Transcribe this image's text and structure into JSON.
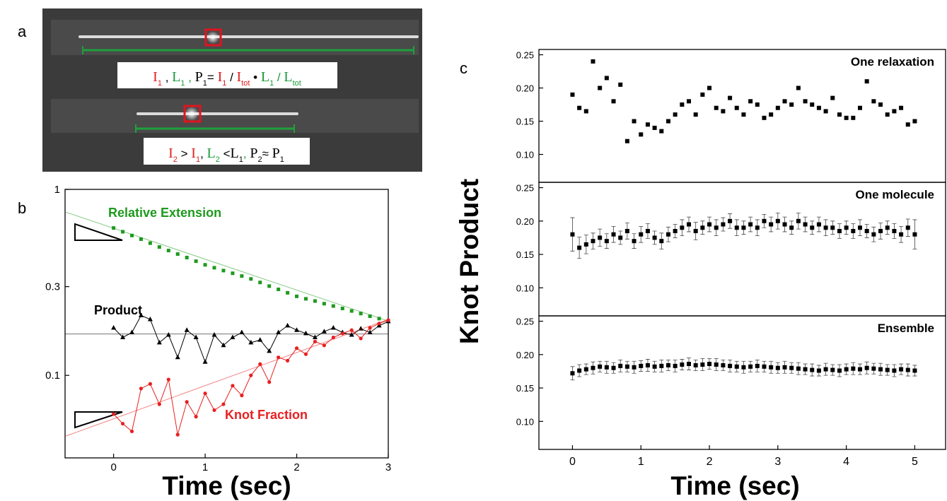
{
  "panel_labels": [
    "a",
    "b",
    "c"
  ],
  "panel_a": {
    "formulas": [
      [
        {
          "text": "I",
          "sub": "1",
          "color": "#e02020"
        },
        {
          "text": " , "
        },
        {
          "text": "L",
          "sub": "1",
          "color": "#1e9a3c"
        },
        {
          "text": " , ",
          "color": "#1e9a3c"
        },
        {
          "text": "P",
          "sub": "1"
        },
        {
          "text": "= "
        },
        {
          "text": "I",
          "sub": "1",
          "color": "#e02020"
        },
        {
          "text": " / "
        },
        {
          "text": "I",
          "sub": "tot",
          "color": "#e02020"
        },
        {
          "text": " • "
        },
        {
          "text": "L",
          "sub": "1",
          "color": "#1e9a3c"
        },
        {
          "text": " / ",
          "color": "#1e9a3c"
        },
        {
          "text": "L",
          "sub": "tot",
          "color": "#1e9a3c"
        }
      ],
      [
        {
          "text": "I",
          "sub": "2",
          "color": "#e02020"
        },
        {
          "text": " > "
        },
        {
          "text": "I",
          "sub": "1",
          "color": "#e02020"
        },
        {
          "text": ", "
        },
        {
          "text": "L",
          "sub": "2",
          "color": "#1e9a3c"
        },
        {
          "text": " <"
        },
        {
          "text": "L",
          "sub": "1"
        },
        {
          "text": ", ",
          "color": "#1e9a3c"
        },
        {
          "text": "P",
          "sub": "2"
        },
        {
          "text": "≈ "
        },
        {
          "text": "P",
          "sub": "1"
        }
      ]
    ]
  },
  "chart_data": [
    {
      "type": "line",
      "xlabel": "Time (sec)",
      "yscale": "log",
      "xlim": [
        -0.53,
        3
      ],
      "ylim": [
        0.036,
        1
      ],
      "xticks": [
        0,
        1,
        2,
        3
      ],
      "yticks": [
        0.1,
        0.3,
        1
      ],
      "x": [
        0,
        0.1,
        0.2,
        0.3,
        0.4,
        0.5,
        0.6,
        0.7,
        0.8,
        0.9,
        1.0,
        1.1,
        1.2,
        1.3,
        1.4,
        1.5,
        1.6,
        1.7,
        1.8,
        1.9,
        2.0,
        2.1,
        2.2,
        2.3,
        2.4,
        2.5,
        2.6,
        2.7,
        2.8,
        2.9,
        3.0
      ],
      "series": [
        {
          "name": "Relative Extension",
          "color": "#1e9a1e",
          "marker": "square",
          "fit": [
            0.757,
            0.196
          ],
          "values": [
            0.62,
            0.592,
            0.565,
            0.54,
            0.514,
            0.49,
            0.469,
            0.449,
            0.43,
            0.411,
            0.393,
            0.379,
            0.366,
            0.354,
            0.342,
            0.33,
            0.316,
            0.302,
            0.29,
            0.278,
            0.266,
            0.258,
            0.251,
            0.243,
            0.236,
            0.229,
            0.222,
            0.215,
            0.208,
            0.202,
            0.196
          ]
        },
        {
          "name": "Product",
          "color": "#000000",
          "marker": "triangle",
          "fit": [
            0.167,
            0.167
          ],
          "values": [
            0.18,
            0.16,
            0.17,
            0.21,
            0.2,
            0.15,
            0.165,
            0.125,
            0.175,
            0.16,
            0.118,
            0.165,
            0.145,
            0.16,
            0.17,
            0.15,
            0.155,
            0.135,
            0.17,
            0.185,
            0.175,
            0.168,
            0.16,
            0.172,
            0.18,
            0.17,
            0.165,
            0.178,
            0.17,
            0.185,
            0.195
          ]
        },
        {
          "name": "Knot Fraction",
          "color": "#e82020",
          "marker": "circle",
          "fit": [
            0.047,
            0.2
          ],
          "values": [
            0.062,
            0.055,
            0.05,
            0.085,
            0.09,
            0.07,
            0.095,
            0.048,
            0.072,
            0.06,
            0.08,
            0.065,
            0.07,
            0.088,
            0.078,
            0.1,
            0.115,
            0.092,
            0.125,
            0.12,
            0.14,
            0.13,
            0.152,
            0.145,
            0.16,
            0.168,
            0.175,
            0.158,
            0.18,
            0.19,
            0.198
          ]
        }
      ]
    },
    {
      "type": "scatter",
      "title": "One relaxation",
      "xlim": [
        -0.49,
        5.45
      ],
      "ylim": [
        0.058,
        0.258
      ],
      "yticks": [
        {
          "value": 0.1,
          "label": "0.10"
        },
        0.15,
        {
          "value": 0.2,
          "label": "0.20"
        },
        0.25
      ],
      "x": [
        0,
        0.1,
        0.2,
        0.3,
        0.4,
        0.5,
        0.6,
        0.7,
        0.8,
        0.9,
        1.0,
        1.1,
        1.2,
        1.3,
        1.4,
        1.5,
        1.6,
        1.7,
        1.8,
        1.9,
        2.0,
        2.1,
        2.2,
        2.3,
        2.4,
        2.5,
        2.6,
        2.7,
        2.8,
        2.9,
        3.0,
        3.1,
        3.2,
        3.3,
        3.4,
        3.5,
        3.6,
        3.7,
        3.8,
        3.9,
        4.0,
        4.1,
        4.2,
        4.3,
        4.4,
        4.5,
        4.6,
        4.7,
        4.8,
        4.9,
        5.0
      ],
      "values": [
        0.19,
        0.17,
        0.165,
        0.24,
        0.2,
        0.215,
        0.18,
        0.205,
        0.12,
        0.15,
        0.13,
        0.145,
        0.14,
        0.135,
        0.15,
        0.16,
        0.175,
        0.18,
        0.16,
        0.19,
        0.2,
        0.17,
        0.165,
        0.185,
        0.17,
        0.16,
        0.18,
        0.175,
        0.155,
        0.16,
        0.17,
        0.18,
        0.175,
        0.2,
        0.18,
        0.175,
        0.17,
        0.165,
        0.185,
        0.16,
        0.155,
        0.155,
        0.17,
        0.21,
        0.18,
        0.175,
        0.16,
        0.165,
        0.17,
        0.145,
        0.15
      ]
    },
    {
      "type": "scatter",
      "title": "One molecule",
      "ylabel": "Knot Product",
      "xlim": [
        -0.49,
        5.45
      ],
      "ylim": [
        0.058,
        0.258
      ],
      "yticks": [
        {
          "value": 0.1,
          "label": "0.10"
        },
        0.15,
        {
          "value": 0.2,
          "label": "0.20"
        },
        0.25
      ],
      "x": [
        0,
        0.1,
        0.2,
        0.3,
        0.4,
        0.5,
        0.6,
        0.7,
        0.8,
        0.9,
        1.0,
        1.1,
        1.2,
        1.3,
        1.4,
        1.5,
        1.6,
        1.7,
        1.8,
        1.9,
        2.0,
        2.1,
        2.2,
        2.3,
        2.4,
        2.5,
        2.6,
        2.7,
        2.8,
        2.9,
        3.0,
        3.1,
        3.2,
        3.3,
        3.4,
        3.5,
        3.6,
        3.7,
        3.8,
        3.9,
        4.0,
        4.1,
        4.2,
        4.3,
        4.4,
        4.5,
        4.6,
        4.7,
        4.8,
        4.9,
        5.0
      ],
      "values": [
        0.18,
        0.16,
        0.165,
        0.17,
        0.175,
        0.17,
        0.18,
        0.175,
        0.185,
        0.17,
        0.18,
        0.185,
        0.175,
        0.17,
        0.18,
        0.185,
        0.19,
        0.195,
        0.185,
        0.19,
        0.195,
        0.19,
        0.195,
        0.2,
        0.19,
        0.19,
        0.195,
        0.19,
        0.2,
        0.195,
        0.2,
        0.195,
        0.19,
        0.2,
        0.195,
        0.19,
        0.195,
        0.19,
        0.19,
        0.185,
        0.19,
        0.185,
        0.19,
        0.185,
        0.18,
        0.185,
        0.19,
        0.185,
        0.18,
        0.19,
        0.18
      ],
      "errors": [
        0.025,
        0.016,
        0.014,
        0.012,
        0.013,
        0.011,
        0.012,
        0.01,
        0.012,
        0.011,
        0.012,
        0.011,
        0.01,
        0.012,
        0.011,
        0.01,
        0.012,
        0.011,
        0.013,
        0.01,
        0.011,
        0.012,
        0.01,
        0.011,
        0.012,
        0.01,
        0.011,
        0.012,
        0.01,
        0.011,
        0.012,
        0.011,
        0.01,
        0.012,
        0.011,
        0.01,
        0.011,
        0.012,
        0.01,
        0.011,
        0.01,
        0.011,
        0.012,
        0.01,
        0.011,
        0.012,
        0.01,
        0.011,
        0.012,
        0.013,
        0.022
      ]
    },
    {
      "type": "scatter",
      "title": "Ensemble",
      "xlabel": "Time (sec)",
      "xlim": [
        -0.49,
        5.45
      ],
      "ylim": [
        0.058,
        0.258
      ],
      "xticks": [
        0,
        1,
        2,
        3,
        4,
        5
      ],
      "yticks": [
        {
          "value": 0.1,
          "label": "0.10"
        },
        0.15,
        {
          "value": 0.2,
          "label": "0.20"
        },
        0.25
      ],
      "x": [
        0,
        0.1,
        0.2,
        0.3,
        0.4,
        0.5,
        0.6,
        0.7,
        0.8,
        0.9,
        1.0,
        1.1,
        1.2,
        1.3,
        1.4,
        1.5,
        1.6,
        1.7,
        1.8,
        1.9,
        2.0,
        2.1,
        2.2,
        2.3,
        2.4,
        2.5,
        2.6,
        2.7,
        2.8,
        2.9,
        3.0,
        3.1,
        3.2,
        3.3,
        3.4,
        3.5,
        3.6,
        3.7,
        3.8,
        3.9,
        4.0,
        4.1,
        4.2,
        4.3,
        4.4,
        4.5,
        4.6,
        4.7,
        4.8,
        4.9,
        5.0
      ],
      "values": [
        0.172,
        0.176,
        0.178,
        0.18,
        0.182,
        0.181,
        0.18,
        0.183,
        0.182,
        0.181,
        0.183,
        0.184,
        0.182,
        0.183,
        0.184,
        0.183,
        0.185,
        0.186,
        0.184,
        0.185,
        0.186,
        0.185,
        0.184,
        0.183,
        0.182,
        0.181,
        0.182,
        0.183,
        0.182,
        0.181,
        0.18,
        0.181,
        0.18,
        0.179,
        0.178,
        0.177,
        0.176,
        0.178,
        0.177,
        0.176,
        0.178,
        0.179,
        0.178,
        0.18,
        0.179,
        0.178,
        0.177,
        0.176,
        0.178,
        0.177,
        0.176
      ],
      "errors": [
        0.01,
        0.009,
        0.008,
        0.009,
        0.008,
        0.009,
        0.008,
        0.009,
        0.008,
        0.009,
        0.008,
        0.009,
        0.008,
        0.009,
        0.008,
        0.009,
        0.008,
        0.009,
        0.008,
        0.009,
        0.008,
        0.009,
        0.008,
        0.009,
        0.008,
        0.009,
        0.008,
        0.009,
        0.008,
        0.009,
        0.008,
        0.009,
        0.008,
        0.009,
        0.008,
        0.009,
        0.008,
        0.009,
        0.008,
        0.009,
        0.008,
        0.009,
        0.008,
        0.009,
        0.008,
        0.009,
        0.008,
        0.009,
        0.008,
        0.009,
        0.008
      ]
    }
  ]
}
